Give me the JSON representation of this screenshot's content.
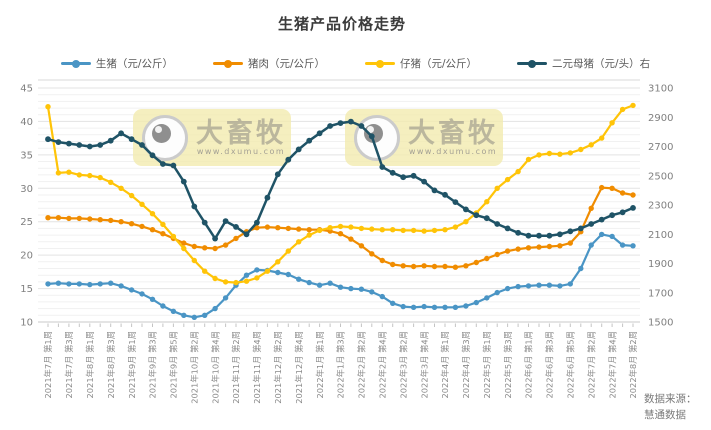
{
  "title": "生猪产品价格走势",
  "source": {
    "line1": "数据来源：",
    "line2": "慧通数据"
  },
  "watermark": {
    "brand": "大畜牧",
    "url": "www.dxumu.com"
  },
  "colors": {
    "hog_blue": "#4A95C5",
    "pork_orange": "#F08C00",
    "piglet_yellow": "#FFC408",
    "sow_navy": "#1F5366",
    "grid_minor": "#F1F1F1",
    "grid_major": "#E3E3E3",
    "axis_text": "#808080"
  },
  "chart_data": {
    "type": "line",
    "title": "生猪产品价格走势",
    "grid": "horizontal",
    "legend_position": "top",
    "points_per_label": 2,
    "x_tick_labels": [
      "2021年7月 第1周",
      "2021年7月 第3周",
      "2021年8月 第1周",
      "2021年8月 第3周",
      "2021年9月 第1周",
      "2021年9月 第3周",
      "2021年9月 第5周",
      "2021年10月 第2周",
      "2021年10月 第4周",
      "2021年11月 第2周",
      "2021年11月 第4周",
      "2021年12月 第2周",
      "2021年12月 第4周",
      "2022年1月 第1周",
      "2022年1月 第3周",
      "2022年2月 第2周",
      "2022年2月 第4周",
      "2022年3月 第2周",
      "2022年3月 第4周",
      "2022年4月 第1周",
      "2022年4月 第3周",
      "2022年5月 第1周",
      "2022年5月 第3周",
      "2022年6月 第1周",
      "2022年6月 第3周",
      "2022年6月 第5周",
      "2022年7月 第2周",
      "2022年7月 第4周",
      "2022年8月 第2周"
    ],
    "left_axis": {
      "min": 10,
      "max": 45,
      "tick_step": 5,
      "minor_step": 1
    },
    "right_axis": {
      "min": 1500,
      "max": 3100,
      "tick_step": 200
    },
    "series": [
      {
        "name": "生猪（元/公斤）",
        "axis": "left",
        "color": "#4A95C5",
        "values": [
          15.7,
          15.8,
          15.7,
          15.7,
          15.6,
          15.7,
          15.8,
          15.4,
          14.8,
          14.2,
          13.4,
          12.4,
          11.6,
          11.0,
          10.7,
          11.0,
          12.0,
          13.6,
          15.5,
          17.0,
          17.8,
          17.7,
          17.4,
          17.1,
          16.4,
          15.9,
          15.5,
          15.8,
          15.2,
          15.0,
          14.9,
          14.5,
          13.8,
          12.8,
          12.3,
          12.2,
          12.3,
          12.2,
          12.2,
          12.2,
          12.4,
          12.9,
          13.6,
          14.4,
          15.0,
          15.3,
          15.4,
          15.5,
          15.5,
          15.4,
          15.7,
          18.0,
          21.5,
          23.1,
          22.8,
          21.5,
          21.4
        ]
      },
      {
        "name": "猪肉（元/公斤）",
        "axis": "left",
        "color": "#F08C00",
        "values": [
          25.6,
          25.6,
          25.5,
          25.5,
          25.4,
          25.3,
          25.2,
          25.0,
          24.7,
          24.3,
          23.8,
          23.2,
          22.5,
          21.8,
          21.3,
          21.1,
          21.0,
          21.5,
          22.5,
          23.5,
          24.1,
          24.2,
          24.1,
          24.0,
          23.9,
          23.8,
          23.8,
          23.6,
          23.2,
          22.4,
          21.4,
          20.2,
          19.2,
          18.6,
          18.4,
          18.3,
          18.4,
          18.3,
          18.3,
          18.2,
          18.4,
          18.9,
          19.5,
          20.1,
          20.6,
          20.9,
          21.1,
          21.2,
          21.3,
          21.4,
          21.8,
          23.5,
          27.0,
          30.1,
          30.0,
          29.3,
          29.0
        ]
      },
      {
        "name": "仔猪（元/公斤）",
        "axis": "left",
        "color": "#FFC408",
        "values": [
          42.2,
          32.3,
          32.4,
          32.0,
          31.9,
          31.6,
          30.9,
          30.0,
          28.9,
          27.6,
          26.2,
          24.6,
          22.8,
          21.0,
          19.2,
          17.6,
          16.5,
          16.0,
          15.9,
          16.1,
          16.6,
          17.6,
          19.0,
          20.6,
          22.0,
          23.0,
          23.7,
          24.1,
          24.3,
          24.2,
          24.0,
          23.9,
          23.8,
          23.8,
          23.7,
          23.7,
          23.6,
          23.7,
          23.8,
          24.2,
          25.0,
          26.3,
          28.0,
          30.0,
          31.3,
          32.5,
          34.3,
          35.0,
          35.2,
          35.1,
          35.3,
          35.8,
          36.5,
          37.5,
          39.8,
          41.8,
          42.4
        ]
      },
      {
        "name": "二元母猪（元/头）右",
        "axis": "right",
        "color": "#1F5366",
        "values": [
          2750,
          2730,
          2720,
          2710,
          2700,
          2710,
          2740,
          2790,
          2750,
          2710,
          2640,
          2580,
          2570,
          2460,
          2290,
          2180,
          2070,
          2190,
          2150,
          2100,
          2180,
          2350,
          2510,
          2610,
          2680,
          2740,
          2790,
          2840,
          2860,
          2870,
          2840,
          2770,
          2560,
          2520,
          2490,
          2500,
          2460,
          2400,
          2370,
          2320,
          2270,
          2230,
          2210,
          2170,
          2140,
          2110,
          2090,
          2090,
          2090,
          2100,
          2120,
          2140,
          2170,
          2200,
          2230,
          2250,
          2280
        ]
      }
    ]
  }
}
